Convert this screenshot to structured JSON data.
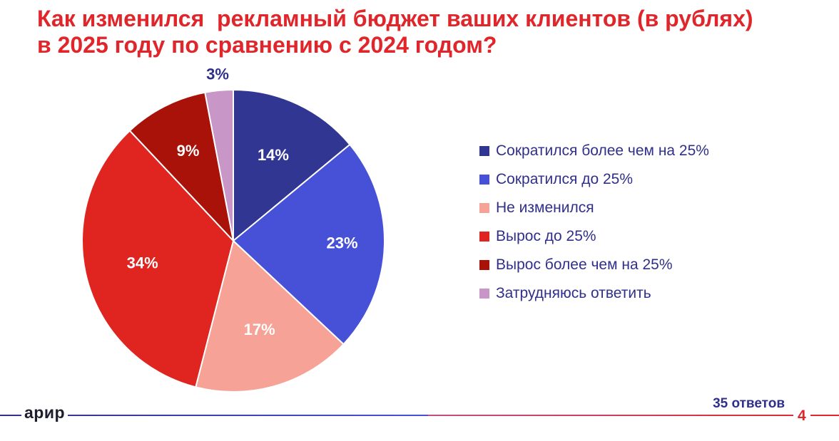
{
  "title": "Как изменился  рекламный бюджет ваших клиентов (в рублях)\nв 2025 году по сравнению с 2024 годом?",
  "chart_data": {
    "type": "pie",
    "title": "Как изменился  рекламный бюджет ваших клиентов (в рублях) в 2025 году по сравнению с 2024 годом?",
    "slices": [
      {
        "label": "Сократился более чем на 25%",
        "value": 14,
        "color": "#323693",
        "label_color": "#ffffff"
      },
      {
        "label": "Сократился до 25%",
        "value": 23,
        "color": "#4751d8",
        "label_color": "#ffffff"
      },
      {
        "label": "Не изменился",
        "value": 17,
        "color": "#f7a296",
        "label_color": "#ffffff"
      },
      {
        "label": "Вырос до 25%",
        "value": 34,
        "color": "#e0241f",
        "label_color": "#ffffff"
      },
      {
        "label": "Вырос более чем на 25%",
        "value": 9,
        "color": "#a81208",
        "label_color": "#ffffff"
      },
      {
        "label": "Затрудняюсь ответить",
        "value": 3,
        "color": "#c996c8",
        "label_color": "#30308a"
      }
    ],
    "value_suffix": "%",
    "legend_position": "right"
  },
  "footer": {
    "logo": "арир",
    "responses": "35 ответов",
    "page_number": "4"
  },
  "colors": {
    "title": "#e0262b",
    "text": "#30308a",
    "footer_rule_left": "#4751d8",
    "footer_rule_right": "#e0262b"
  }
}
